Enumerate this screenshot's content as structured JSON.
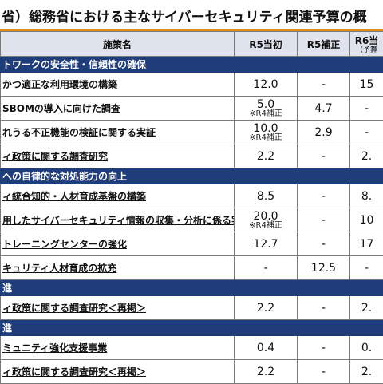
{
  "title": "省）総務省における主なサイバーセキュリティ関連予算の概",
  "header": {
    "name": "施策名",
    "r5_initial": "R5当初",
    "r5_supp": "R5補正",
    "r6": "R6当",
    "r6_sub": "（予算"
  },
  "sections": [
    {
      "title": "トワークの安全性・信頼性の確保",
      "rows": [
        {
          "name": "かつ適正な利用環境の構築",
          "r5": "12.0",
          "r5_note": "",
          "supp": "-",
          "r6": "15"
        },
        {
          "name": "SBOMの導入に向けた調査",
          "r5": "5.0",
          "r5_note": "※R4補正",
          "supp": "4.7",
          "r6": "-"
        },
        {
          "name": "れうる不正機能の検証に関する実証",
          "r5": "10.0",
          "r5_note": "※R4補正",
          "supp": "2.9",
          "r6": "-"
        },
        {
          "name": "ィ政策に関する調査研究",
          "r5": "2.2",
          "r5_note": "",
          "supp": "-",
          "r6": "2."
        }
      ]
    },
    {
      "title": "への自律的な対処能力の向上",
      "rows": [
        {
          "name": "ィ統合知的・人材育成基盤の構築",
          "r5": "8.5",
          "r5_note": "",
          "supp": "-",
          "r6": "8."
        },
        {
          "name": "用したサイバーセキュリティ情報の収集・分析に係る実証事業",
          "r5": "20.0",
          "r5_note": "※R4補正",
          "supp": "-",
          "r6": "10"
        },
        {
          "name": "トレーニングセンターの強化",
          "r5": "12.7",
          "r5_note": "",
          "supp": "-",
          "r6": "17"
        },
        {
          "name": "キュリティ人材育成の拡充",
          "r5": "-",
          "r5_note": "",
          "supp": "12.5",
          "r6": "-"
        }
      ]
    },
    {
      "title": "進",
      "rows": [
        {
          "name": "ィ政策に関する調査研究＜再掲＞",
          "r5": "2.2",
          "r5_note": "",
          "supp": "-",
          "r6": "2."
        }
      ]
    },
    {
      "title": "進",
      "rows": [
        {
          "name": "ミュニティ強化支援事業",
          "r5": "0.4",
          "r5_note": "",
          "supp": "-",
          "r6": "0."
        },
        {
          "name": "ィ政策に関する調査研究＜再掲＞",
          "r5": "2.2",
          "r5_note": "",
          "supp": "-",
          "r6": "2."
        }
      ]
    }
  ]
}
